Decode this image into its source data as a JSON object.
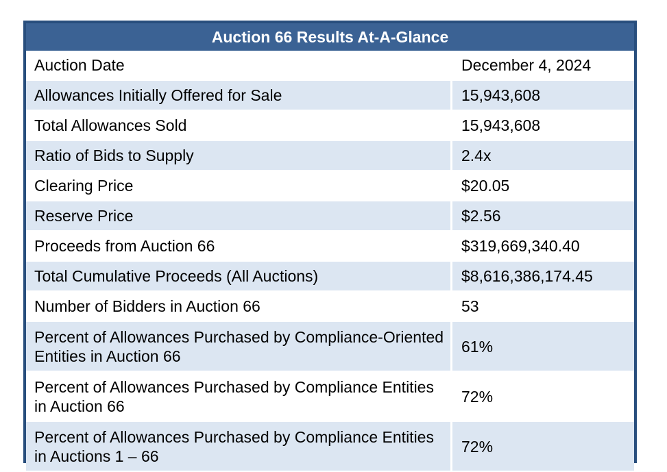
{
  "title": "Auction 66 Results At-A-Glance",
  "rows": [
    {
      "label": "Auction Date",
      "value": "December 4, 2024"
    },
    {
      "label": "Allowances Initially Offered for Sale",
      "value": "15,943,608"
    },
    {
      "label": "Total Allowances Sold",
      "value": "15,943,608"
    },
    {
      "label": "Ratio of Bids to Supply",
      "value": "2.4x"
    },
    {
      "label": "Clearing Price",
      "value": "$20.05"
    },
    {
      "label": "Reserve Price",
      "value": "$2.56"
    },
    {
      "label": "Proceeds from Auction 66",
      "value": "$319,669,340.40"
    },
    {
      "label": "Total Cumulative Proceeds (All Auctions)",
      "value": "$8,616,386,174.45"
    },
    {
      "label": "Number of Bidders in Auction 66",
      "value": "53"
    },
    {
      "label": "Percent of Allowances Purchased by Compliance-Oriented Entities in Auction 66",
      "value": "61%"
    },
    {
      "label": "Percent of Allowances Purchased by Compliance Entities in Auction 66",
      "value": "72%"
    },
    {
      "label": "Percent of Allowances Purchased by Compliance Entities in Auctions 1 – 66",
      "value": "72%"
    }
  ],
  "colors": {
    "header_background": "#3b6294",
    "border": "#284e7d",
    "shaded_row": "#dce6f2",
    "header_text": "#ffffff"
  }
}
